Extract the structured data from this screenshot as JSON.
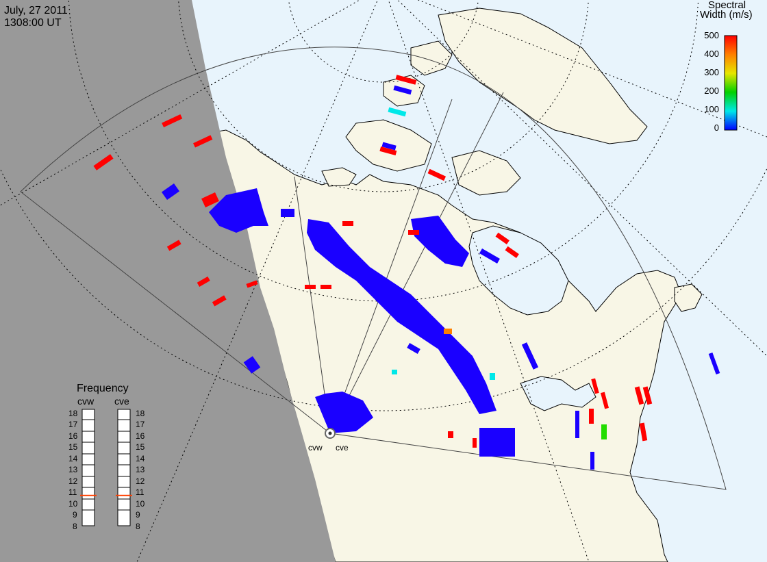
{
  "header": {
    "date": "July, 27 2011",
    "time": "1308:00 UT"
  },
  "colorbar": {
    "title_line1": "Spectral",
    "title_line2": "Width (m/s)",
    "ticks": [
      "500",
      "400",
      "300",
      "200",
      "100",
      "0"
    ],
    "colors": [
      "#ff0000",
      "#ff8000",
      "#e6e600",
      "#00d000",
      "#00e8e8",
      "#0000ff"
    ]
  },
  "frequency": {
    "title": "Frequency",
    "radars": [
      {
        "name": "cvw",
        "value_mhz": 10.6
      },
      {
        "name": "cve",
        "value_mhz": 10.6
      }
    ],
    "ticks": [
      "18",
      "17",
      "16",
      "15",
      "14",
      "13",
      "12",
      "11",
      "10",
      "9",
      "8"
    ]
  },
  "sites": [
    {
      "name": "cvw"
    },
    {
      "name": "cve"
    }
  ],
  "colors": {
    "night": "#999999",
    "ocean": "#e8f4fc",
    "land": "#f8f6e6",
    "coast": "#000000",
    "grid": "#000000",
    "echo_low": "#1a00ff",
    "echo_high": "#ff0000"
  }
}
